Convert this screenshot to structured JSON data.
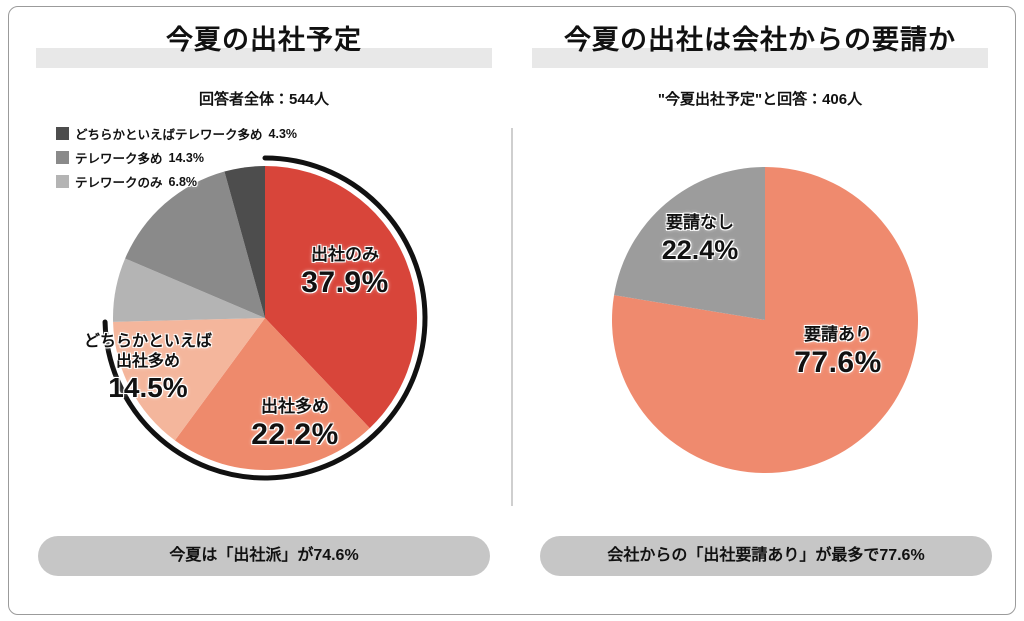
{
  "page": {
    "background": "#ffffff",
    "border_color": "#9b9b9b",
    "divider_color": "#cfcfcf",
    "title_highlight_color": "#e8e8e8",
    "pill_color": "#c6c6c6",
    "text_color": "#111111"
  },
  "chart_data": [
    {
      "type": "pie",
      "title": "今夏の出社予定",
      "subtitle": "回答者全体：544人",
      "respondents": 544,
      "start_angle": "top",
      "direction": "clockwise",
      "legend_position": "top-left",
      "slices": [
        {
          "label": "出社のみ",
          "value": 37.9,
          "display": "37.9%",
          "color": "#d8453a"
        },
        {
          "label": "出社多め",
          "value": 22.2,
          "display": "22.2%",
          "color": "#ee8a6c"
        },
        {
          "label": "どちらかといえば出社多め",
          "value": 14.5,
          "display": "14.5%",
          "color": "#f4b69c",
          "label_lines": [
            "どちらかといえば",
            "出社多め"
          ]
        },
        {
          "label": "テレワークのみ",
          "value": 6.8,
          "display": "6.8%",
          "color": "#b4b4b4"
        },
        {
          "label": "テレワーク多め",
          "value": 14.3,
          "display": "14.3%",
          "color": "#8a8a8a"
        },
        {
          "label": "どちらかといえばテレワーク多め",
          "value": 4.3,
          "display": "4.3%",
          "color": "#4d4d4d"
        }
      ],
      "highlight_arc": {
        "from_pct": 0,
        "to_pct": 74.6,
        "color": "#111111"
      },
      "annotation": "今夏は「出社派」が74.6%"
    },
    {
      "type": "pie",
      "title": "今夏の出社は会社からの要請か",
      "subtitle": "\"今夏出社予定\"と回答：406人",
      "respondents": 406,
      "start_angle": "top",
      "direction": "clockwise",
      "slices": [
        {
          "label": "要請あり",
          "value": 77.6,
          "display": "77.6%",
          "color": "#ef8a6e"
        },
        {
          "label": "要請なし",
          "value": 22.4,
          "display": "22.4%",
          "color": "#9c9c9c"
        }
      ],
      "annotation": "会社からの「出社要請あり」が最多で77.6%"
    }
  ]
}
